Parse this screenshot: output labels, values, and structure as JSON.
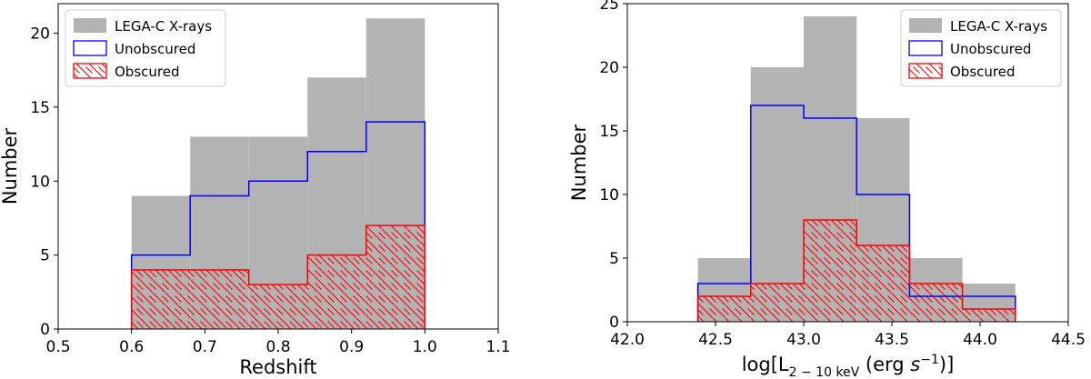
{
  "chart_data": [
    {
      "type": "bar",
      "subtype": "step-histogram",
      "xlabel": "Redshift",
      "ylabel": "Number",
      "xlim": [
        0.5,
        1.1
      ],
      "ylim": [
        0,
        22
      ],
      "xticks": [
        0.5,
        0.6,
        0.7,
        0.8,
        0.9,
        1.0,
        1.1
      ],
      "xtick_labels": [
        "0.5",
        "0.6",
        "0.7",
        "0.8",
        "0.9",
        "1.0",
        "1.1"
      ],
      "yticks": [
        0,
        5,
        10,
        15,
        20
      ],
      "ytick_labels": [
        "0",
        "5",
        "10",
        "15",
        "20"
      ],
      "bin_edges": [
        0.6,
        0.68,
        0.76,
        0.84,
        0.92,
        1.0
      ],
      "series": [
        {
          "name": "LEGA-C X-rays",
          "style": "filled",
          "color": "#b3b3b3",
          "values": [
            9,
            13,
            13,
            17,
            21
          ]
        },
        {
          "name": "Unobscured",
          "style": "step",
          "color": "#0000ff",
          "values": [
            5,
            9,
            10,
            12,
            14
          ]
        },
        {
          "name": "Obscured",
          "style": "hatched",
          "color": "#ff0000",
          "values": [
            4,
            4,
            3,
            5,
            7
          ]
        }
      ],
      "legend": "top-left",
      "grid": false
    },
    {
      "type": "bar",
      "subtype": "step-histogram",
      "xlabel_parts": [
        "log[L",
        "2 − 10 keV",
        " (erg ",
        "s",
        "−1",
        ")]"
      ],
      "ylabel": "Number",
      "xlim": [
        42.0,
        44.5
      ],
      "ylim": [
        0,
        25
      ],
      "xticks": [
        42.0,
        42.5,
        43.0,
        43.5,
        44.0,
        44.5
      ],
      "xtick_labels": [
        "42.0",
        "42.5",
        "43.0",
        "43.5",
        "44.0",
        "44.5"
      ],
      "yticks": [
        0,
        5,
        10,
        15,
        20,
        25
      ],
      "ytick_labels": [
        "0",
        "5",
        "10",
        "15",
        "20",
        "25"
      ],
      "bin_edges": [
        42.4,
        42.7,
        43.0,
        43.3,
        43.6,
        43.9,
        44.2
      ],
      "series": [
        {
          "name": "LEGA-C X-rays",
          "style": "filled",
          "color": "#b3b3b3",
          "values": [
            5,
            20,
            24,
            16,
            5,
            3
          ]
        },
        {
          "name": "Unobscured",
          "style": "step",
          "color": "#0000ff",
          "values": [
            3,
            17,
            16,
            10,
            2,
            2
          ]
        },
        {
          "name": "Obscured",
          "style": "hatched",
          "color": "#ff0000",
          "values": [
            2,
            3,
            8,
            6,
            3,
            1
          ]
        }
      ],
      "legend": "top-right",
      "grid": false
    }
  ]
}
